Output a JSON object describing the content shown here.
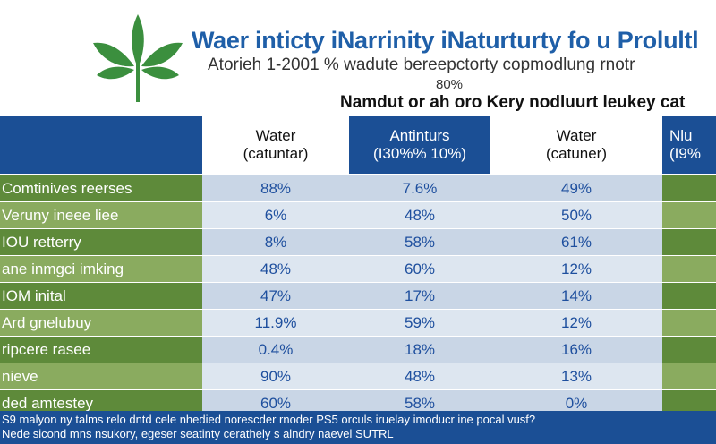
{
  "header": {
    "logo": "leaf-icon",
    "title": "Waer inticty iNarrinity iNaturturty fo u Prolultl",
    "subtitle": "Atorieh 1-2001 % wadute bereepctorty copmodlung rnotr",
    "subtitle_pct": "80%",
    "table_heading": "Namdut or ah oro Kery nodluurt leukey cat"
  },
  "colors": {
    "title": "#1f5fa8",
    "header_blue": "#1b4f95",
    "label_green_dark": "#5e8a3a",
    "label_green_light": "#8aab5f",
    "cell_blue_light": "#dde6f0",
    "cell_blue": "#c9d6e6",
    "value_text": "#1e4f9e"
  },
  "chart_data": {
    "type": "table",
    "title": "Waer inticty iNarrinity iNaturturty fo u Prolultl",
    "columns": [
      [
        "Water",
        "(catuntar)"
      ],
      [
        "Antinturs",
        "(I30%% 10%)"
      ],
      [
        "Water",
        "(catuner)"
      ],
      [
        "Nlu",
        "(I9%"
      ]
    ],
    "rows": [
      {
        "label": "Comtinives reerses",
        "values": [
          "88%",
          "7.6%",
          "49%",
          ""
        ]
      },
      {
        "label": "Veruny ineee liee",
        "values": [
          "6%",
          "48%",
          "50%",
          ""
        ]
      },
      {
        "label": "IOU retterry",
        "values": [
          "8%",
          "58%",
          "61%",
          ""
        ]
      },
      {
        "label": "ane inmgci imking",
        "values": [
          "48%",
          "60%",
          "12%",
          ""
        ]
      },
      {
        "label": "IOM inital",
        "values": [
          "47%",
          "17%",
          "14%",
          ""
        ]
      },
      {
        "label": "Ard gnelubuy",
        "values": [
          "11.9%",
          "59%",
          "12%",
          ""
        ]
      },
      {
        "label": "ripcere rasee",
        "values": [
          "0.4%",
          "18%",
          "16%",
          ""
        ]
      },
      {
        "label": "nieve",
        "values": [
          "90%",
          "48%",
          "13%",
          ""
        ]
      },
      {
        "label": "ded amtestey",
        "values": [
          "60%",
          "58%",
          "0%",
          ""
        ]
      }
    ]
  },
  "footer": {
    "line1": "S9 malyon ny talms relo dntd cele nhedied norescder rnoder PS5 orculs iruelay imoducr ine pocal vusf?",
    "line2": "Nede sicond mns nsukory, egeser seatinty cerathely s alndry naevel SUTRL"
  }
}
